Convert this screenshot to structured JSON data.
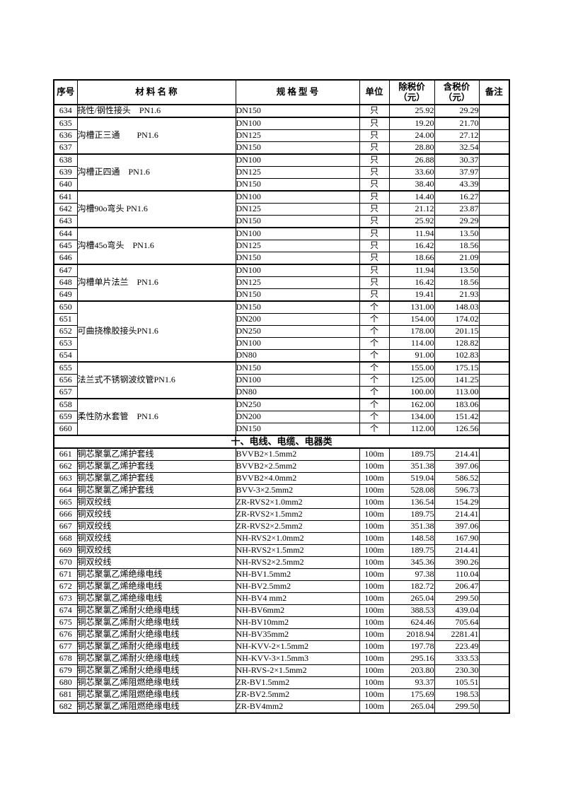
{
  "table": {
    "columns": [
      {
        "label": "序号"
      },
      {
        "label": "材 料 名 称"
      },
      {
        "label": "规 格 型 号"
      },
      {
        "label": "单位"
      },
      {
        "label": "除税价\n（元）"
      },
      {
        "label": "含税价\n（元）"
      },
      {
        "label": "备注"
      }
    ],
    "rows": [
      {
        "no": "634",
        "name": "挠性/钢性接头　PN1.6",
        "name_span": 1,
        "spec": "DN150",
        "unit": "只",
        "ex": "25.92",
        "inc": "29.29",
        "note": "",
        "group_end": true
      },
      {
        "no": "635",
        "name": "沟槽正三通　　PN1.6",
        "name_span": 3,
        "spec": "DN100",
        "unit": "只",
        "ex": "19.20",
        "inc": "21.70",
        "note": ""
      },
      {
        "no": "636",
        "spec": "DN125",
        "unit": "只",
        "ex": "24.00",
        "inc": "27.12",
        "note": ""
      },
      {
        "no": "637",
        "spec": "DN150",
        "unit": "只",
        "ex": "28.80",
        "inc": "32.54",
        "note": "",
        "group_end": true
      },
      {
        "no": "638",
        "name": "沟槽正四通　PN1.6",
        "name_span": 3,
        "spec": "DN100",
        "unit": "只",
        "ex": "26.88",
        "inc": "30.37",
        "note": ""
      },
      {
        "no": "639",
        "spec": "DN125",
        "unit": "只",
        "ex": "33.60",
        "inc": "37.97",
        "note": ""
      },
      {
        "no": "640",
        "spec": "DN150",
        "unit": "只",
        "ex": "38.40",
        "inc": "43.39",
        "note": "",
        "group_end": true
      },
      {
        "no": "641",
        "name": "沟槽90o弯头 PN1.6",
        "name_span": 3,
        "spec": "DN100",
        "unit": "只",
        "ex": "14.40",
        "inc": "16.27",
        "note": ""
      },
      {
        "no": "642",
        "spec": "DN125",
        "unit": "只",
        "ex": "21.12",
        "inc": "23.87",
        "note": ""
      },
      {
        "no": "643",
        "spec": "DN150",
        "unit": "只",
        "ex": "25.92",
        "inc": "29.29",
        "note": "",
        "group_end": true
      },
      {
        "no": "644",
        "name": "沟槽45o弯头　PN1.6",
        "name_span": 3,
        "spec": "DN100",
        "unit": "只",
        "ex": "11.94",
        "inc": "13.50",
        "note": ""
      },
      {
        "no": "645",
        "spec": "DN125",
        "unit": "只",
        "ex": "16.42",
        "inc": "18.56",
        "note": ""
      },
      {
        "no": "646",
        "spec": "DN150",
        "unit": "只",
        "ex": "18.66",
        "inc": "21.09",
        "note": "",
        "group_end": true
      },
      {
        "no": "647",
        "name": "沟槽单片法兰　PN1.6",
        "name_span": 3,
        "spec": "DN100",
        "unit": "只",
        "ex": "11.94",
        "inc": "13.50",
        "note": ""
      },
      {
        "no": "648",
        "spec": "DN125",
        "unit": "只",
        "ex": "16.42",
        "inc": "18.56",
        "note": ""
      },
      {
        "no": "649",
        "spec": "DN150",
        "unit": "只",
        "ex": "19.41",
        "inc": "21.93",
        "note": "",
        "group_end": true
      },
      {
        "no": "650",
        "name": "可曲挠橡胶接头PN1.6",
        "name_span": 5,
        "spec": "DN150",
        "unit": "个",
        "ex": "131.00",
        "inc": "148.03",
        "note": ""
      },
      {
        "no": "651",
        "spec": "DN200",
        "unit": "个",
        "ex": "154.00",
        "inc": "174.02",
        "note": ""
      },
      {
        "no": "652",
        "spec": "DN250",
        "unit": "个",
        "ex": "178.00",
        "inc": "201.15",
        "note": ""
      },
      {
        "no": "653",
        "spec": "DN100",
        "unit": "个",
        "ex": "114.00",
        "inc": "128.82",
        "note": ""
      },
      {
        "no": "654",
        "spec": "DN80",
        "unit": "个",
        "ex": "91.00",
        "inc": "102.83",
        "note": "",
        "group_end": true
      },
      {
        "no": "655",
        "name": "法兰式不锈钢波纹管PN1.6",
        "name_span": 3,
        "spec": "DN150",
        "unit": "个",
        "ex": "155.00",
        "inc": "175.15",
        "note": ""
      },
      {
        "no": "656",
        "spec": "DN100",
        "unit": "个",
        "ex": "125.00",
        "inc": "141.25",
        "note": ""
      },
      {
        "no": "657",
        "spec": "DN80",
        "unit": "个",
        "ex": "100.00",
        "inc": "113.00",
        "note": "",
        "group_end": true
      },
      {
        "no": "658",
        "name": "柔性防水套管　PN1.6",
        "name_span": 3,
        "spec": "DN250",
        "unit": "个",
        "ex": "162.00",
        "inc": "183.06",
        "note": ""
      },
      {
        "no": "659",
        "spec": "DN200",
        "unit": "个",
        "ex": "134.00",
        "inc": "151.42",
        "note": ""
      },
      {
        "no": "660",
        "spec": "DN150",
        "unit": "个",
        "ex": "112.00",
        "inc": "126.56",
        "note": "",
        "group_end": true
      },
      {
        "section": "十、电线、电缆、电器类"
      },
      {
        "no": "661",
        "name": "铜芯聚氯乙烯护套线",
        "name_span": 1,
        "spec": "BVVB2×1.5mm2",
        "unit": "100m",
        "ex": "189.75",
        "inc": "214.41",
        "note": ""
      },
      {
        "no": "662",
        "name": "铜芯聚氯乙烯护套线",
        "name_span": 1,
        "spec": "BVVB2×2.5mm2",
        "unit": "100m",
        "ex": "351.38",
        "inc": "397.06",
        "note": ""
      },
      {
        "no": "663",
        "name": "铜芯聚氯乙烯护套线",
        "name_span": 1,
        "spec": "BVVB2×4.0mm2",
        "unit": "100m",
        "ex": "519.04",
        "inc": "586.52",
        "note": ""
      },
      {
        "no": "664",
        "name": "铜芯聚氯乙烯护套线",
        "name_span": 1,
        "spec": "BVV-3×2.5mm2",
        "unit": "100m",
        "ex": "528.08",
        "inc": "596.73",
        "note": ""
      },
      {
        "no": "665",
        "name": "铜双绞线",
        "name_span": 1,
        "spec": "ZR-RVS2×1.0mm2",
        "unit": "100m",
        "ex": "136.54",
        "inc": "154.29",
        "note": ""
      },
      {
        "no": "666",
        "name": "铜双绞线",
        "name_span": 1,
        "spec": "ZR-RVS2×1.5mm2",
        "unit": "100m",
        "ex": "189.75",
        "inc": "214.41",
        "note": ""
      },
      {
        "no": "667",
        "name": "铜双绞线",
        "name_span": 1,
        "spec": "ZR-RVS2×2.5mm2",
        "unit": "100m",
        "ex": "351.38",
        "inc": "397.06",
        "note": ""
      },
      {
        "no": "668",
        "name": "铜双绞线",
        "name_span": 1,
        "spec": "NH-RVS2×1.0mm2",
        "unit": "100m",
        "ex": "148.58",
        "inc": "167.90",
        "note": ""
      },
      {
        "no": "669",
        "name": "铜双绞线",
        "name_span": 1,
        "spec": "NH-RVS2×1.5mm2",
        "unit": "100m",
        "ex": "189.75",
        "inc": "214.41",
        "note": ""
      },
      {
        "no": "670",
        "name": "铜双绞线",
        "name_span": 1,
        "spec": "NH-RVS2×2.5mm2",
        "unit": "100m",
        "ex": "345.36",
        "inc": "390.26",
        "note": ""
      },
      {
        "no": "671",
        "name": "铜芯聚氯乙烯绝缘电线",
        "name_span": 1,
        "spec": "NH-BV1.5mm2",
        "unit": "100m",
        "ex": "97.38",
        "inc": "110.04",
        "note": ""
      },
      {
        "no": "672",
        "name": "铜芯聚氯乙烯绝缘电线",
        "name_span": 1,
        "spec": "NH-BV2.5mm2",
        "unit": "100m",
        "ex": "182.72",
        "inc": "206.47",
        "note": ""
      },
      {
        "no": "673",
        "name": "铜芯聚氯乙烯绝缘电线",
        "name_span": 1,
        "spec": "NH-BV4 mm2",
        "unit": "100m",
        "ex": "265.04",
        "inc": "299.50",
        "note": ""
      },
      {
        "no": "674",
        "name": "铜芯聚氯乙烯耐火绝缘电线",
        "name_span": 1,
        "spec": "NH-BV6mm2",
        "unit": "100m",
        "ex": "388.53",
        "inc": "439.04",
        "note": ""
      },
      {
        "no": "675",
        "name": "铜芯聚氯乙烯耐火绝缘电线",
        "name_span": 1,
        "spec": "NH-BV10mm2",
        "unit": "100m",
        "ex": "624.46",
        "inc": "705.64",
        "note": ""
      },
      {
        "no": "676",
        "name": "铜芯聚氯乙烯耐火绝缘电线",
        "name_span": 1,
        "spec": "NH-BV35mm2",
        "unit": "100m",
        "ex": "2018.94",
        "inc": "2281.41",
        "note": ""
      },
      {
        "no": "677",
        "name": "铜芯聚氯乙烯耐火绝缘电线",
        "name_span": 1,
        "spec": "NH-KVV-2×1.5mm2",
        "unit": "100m",
        "ex": "197.78",
        "inc": "223.49",
        "note": ""
      },
      {
        "no": "678",
        "name": "铜芯聚氯乙烯耐火绝缘电线",
        "name_span": 1,
        "spec": "NH-KVV-3×1.5mm3",
        "unit": "100m",
        "ex": "295.16",
        "inc": "333.53",
        "note": ""
      },
      {
        "no": "679",
        "name": "铜芯聚氯乙烯耐火绝缘电线",
        "name_span": 1,
        "spec": "NH-RVS-2×1.5mm2",
        "unit": "100m",
        "ex": "203.80",
        "inc": "230.30",
        "note": ""
      },
      {
        "no": "680",
        "name": "铜芯聚氯乙烯阻燃绝缘电线",
        "name_span": 1,
        "spec": "ZR-BV1.5mm2",
        "unit": "100m",
        "ex": "93.37",
        "inc": "105.51",
        "note": ""
      },
      {
        "no": "681",
        "name": "铜芯聚氯乙烯阻燃绝缘电线",
        "name_span": 1,
        "spec": "ZR-BV2.5mm2",
        "unit": "100m",
        "ex": "175.69",
        "inc": "198.53",
        "note": ""
      },
      {
        "no": "682",
        "name": "铜芯聚氯乙烯阻燃绝缘电线",
        "name_span": 1,
        "spec": "ZR-BV4mm2",
        "unit": "100m",
        "ex": "265.04",
        "inc": "299.50",
        "note": ""
      }
    ]
  }
}
